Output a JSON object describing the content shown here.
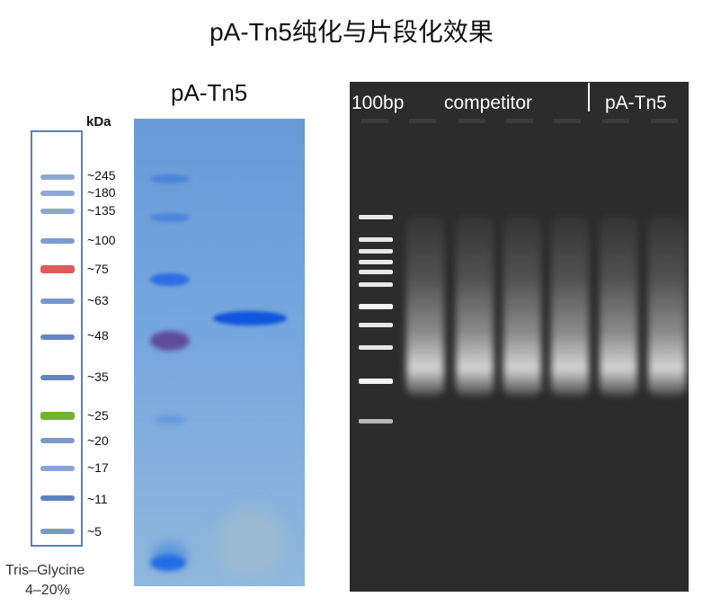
{
  "title": "pA-Tn5纯化与片段化效果",
  "protein_gel": {
    "label": "pA-Tn5"
  },
  "ladder": {
    "unit_label": "kDa",
    "markers": [
      "~245",
      "~180",
      "~135",
      "~100",
      "~75",
      "~63",
      "~48",
      "~35",
      "~25",
      "~20",
      "~17",
      "~11",
      "~5"
    ],
    "caption_line1": "Tris–Glycine",
    "caption_line2": "4–20%",
    "colors": {
      "default": "#6f8fc8",
      "red": "#e05a5a",
      "green": "#74b32e"
    }
  },
  "agarose_gel": {
    "marker_label": "100bp",
    "group1_label": "competitor",
    "group2_label": "pA-Tn5",
    "background": "#2c2c2c"
  }
}
